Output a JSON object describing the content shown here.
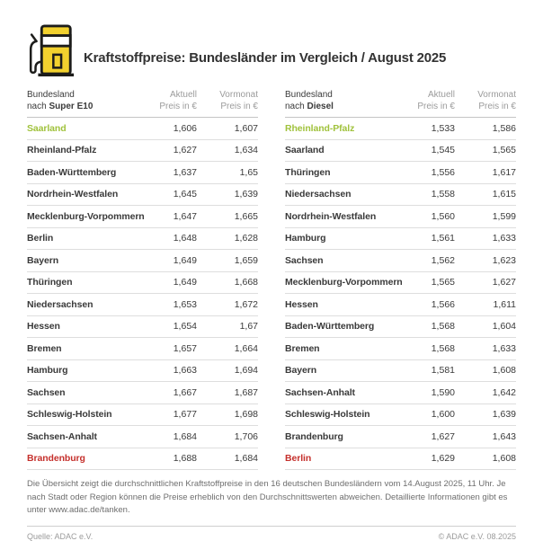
{
  "header": {
    "title": "Kraftstoffpreise: Bundesländer im Vergleich / August 2025",
    "icon": "fuel-pump-icon"
  },
  "colors": {
    "brand_yellow": "#F2D12E",
    "cheapest_green": "#A0C23C",
    "most_expensive_red": "#C5302C",
    "text_dark": "#3A3A3A",
    "text_gray": "#9B9B9B"
  },
  "tables": [
    {
      "name": "super-e10",
      "header": {
        "col1_line1": "Bundesland",
        "col1_prefix": "nach ",
        "col1_fuel": "Super E10",
        "col2_line1": "Aktuell",
        "col2_line2": "Preis in €",
        "col3_line1": "Vormonat",
        "col3_line2": "Preis in €"
      },
      "rows": [
        {
          "state": "Saarland",
          "current": "1,606",
          "previous": "1,607",
          "highlight": "green"
        },
        {
          "state": "Rheinland-Pfalz",
          "current": "1,627",
          "previous": "1,634",
          "highlight": ""
        },
        {
          "state": "Baden-Württemberg",
          "current": "1,637",
          "previous": "1,65",
          "highlight": ""
        },
        {
          "state": "Nordrhein-Westfalen",
          "current": "1,645",
          "previous": "1,639",
          "highlight": ""
        },
        {
          "state": "Mecklenburg-Vorpommern",
          "current": "1,647",
          "previous": "1,665",
          "highlight": ""
        },
        {
          "state": "Berlin",
          "current": "1,648",
          "previous": "1,628",
          "highlight": ""
        },
        {
          "state": "Bayern",
          "current": "1,649",
          "previous": "1,659",
          "highlight": ""
        },
        {
          "state": "Thüringen",
          "current": "1,649",
          "previous": "1,668",
          "highlight": ""
        },
        {
          "state": "Niedersachsen",
          "current": "1,653",
          "previous": "1,672",
          "highlight": ""
        },
        {
          "state": "Hessen",
          "current": "1,654",
          "previous": "1,67",
          "highlight": ""
        },
        {
          "state": "Bremen",
          "current": "1,657",
          "previous": "1,664",
          "highlight": ""
        },
        {
          "state": "Hamburg",
          "current": "1,663",
          "previous": "1,694",
          "highlight": ""
        },
        {
          "state": "Sachsen",
          "current": "1,667",
          "previous": "1,687",
          "highlight": ""
        },
        {
          "state": "Schleswig-Holstein",
          "current": "1,677",
          "previous": "1,698",
          "highlight": ""
        },
        {
          "state": "Sachsen-Anhalt",
          "current": "1,684",
          "previous": "1,706",
          "highlight": ""
        },
        {
          "state": "Brandenburg",
          "current": "1,688",
          "previous": "1,684",
          "highlight": "red"
        }
      ]
    },
    {
      "name": "diesel",
      "header": {
        "col1_line1": "Bundesland",
        "col1_prefix": "nach ",
        "col1_fuel": "Diesel",
        "col2_line1": "Aktuell",
        "col2_line2": "Preis in €",
        "col3_line1": "Vormonat",
        "col3_line2": "Preis in €"
      },
      "rows": [
        {
          "state": "Rheinland-Pfalz",
          "current": "1,533",
          "previous": "1,586",
          "highlight": "green"
        },
        {
          "state": "Saarland",
          "current": "1,545",
          "previous": "1,565",
          "highlight": ""
        },
        {
          "state": "Thüringen",
          "current": "1,556",
          "previous": "1,617",
          "highlight": ""
        },
        {
          "state": "Niedersachsen",
          "current": "1,558",
          "previous": "1,615",
          "highlight": ""
        },
        {
          "state": "Nordrhein-Westfalen",
          "current": "1,560",
          "previous": "1,599",
          "highlight": ""
        },
        {
          "state": "Hamburg",
          "current": "1,561",
          "previous": "1,633",
          "highlight": ""
        },
        {
          "state": "Sachsen",
          "current": "1,562",
          "previous": "1,623",
          "highlight": ""
        },
        {
          "state": "Mecklenburg-Vorpommern",
          "current": "1,565",
          "previous": "1,627",
          "highlight": ""
        },
        {
          "state": "Hessen",
          "current": "1,566",
          "previous": "1,611",
          "highlight": ""
        },
        {
          "state": "Baden-Württemberg",
          "current": "1,568",
          "previous": "1,604",
          "highlight": ""
        },
        {
          "state": "Bremen",
          "current": "1,568",
          "previous": "1,633",
          "highlight": ""
        },
        {
          "state": "Bayern",
          "current": "1,581",
          "previous": "1,608",
          "highlight": ""
        },
        {
          "state": "Sachsen-Anhalt",
          "current": "1,590",
          "previous": "1,642",
          "highlight": ""
        },
        {
          "state": "Schleswig-Holstein",
          "current": "1,600",
          "previous": "1,639",
          "highlight": ""
        },
        {
          "state": "Brandenburg",
          "current": "1,627",
          "previous": "1,643",
          "highlight": ""
        },
        {
          "state": "Berlin",
          "current": "1,629",
          "previous": "1,608",
          "highlight": "red"
        }
      ]
    }
  ],
  "chart_data": [
    {
      "type": "table",
      "title": "Bundesland nach Super E10",
      "columns": [
        "Bundesland",
        "Aktuell Preis in €",
        "Vormonat Preis in €"
      ],
      "rows": [
        [
          "Saarland",
          1.606,
          1.607
        ],
        [
          "Rheinland-Pfalz",
          1.627,
          1.634
        ],
        [
          "Baden-Württemberg",
          1.637,
          1.65
        ],
        [
          "Nordrhein-Westfalen",
          1.645,
          1.639
        ],
        [
          "Mecklenburg-Vorpommern",
          1.647,
          1.665
        ],
        [
          "Berlin",
          1.648,
          1.628
        ],
        [
          "Bayern",
          1.649,
          1.659
        ],
        [
          "Thüringen",
          1.649,
          1.668
        ],
        [
          "Niedersachsen",
          1.653,
          1.672
        ],
        [
          "Hessen",
          1.654,
          1.67
        ],
        [
          "Bremen",
          1.657,
          1.664
        ],
        [
          "Hamburg",
          1.663,
          1.694
        ],
        [
          "Sachsen",
          1.667,
          1.687
        ],
        [
          "Schleswig-Holstein",
          1.677,
          1.698
        ],
        [
          "Sachsen-Anhalt",
          1.684,
          1.706
        ],
        [
          "Brandenburg",
          1.688,
          1.684
        ]
      ],
      "highlights": {
        "cheapest": "Saarland",
        "most_expensive": "Brandenburg"
      }
    },
    {
      "type": "table",
      "title": "Bundesland nach Diesel",
      "columns": [
        "Bundesland",
        "Aktuell Preis in €",
        "Vormonat Preis in €"
      ],
      "rows": [
        [
          "Rheinland-Pfalz",
          1.533,
          1.586
        ],
        [
          "Saarland",
          1.545,
          1.565
        ],
        [
          "Thüringen",
          1.556,
          1.617
        ],
        [
          "Niedersachsen",
          1.558,
          1.615
        ],
        [
          "Nordrhein-Westfalen",
          1.56,
          1.599
        ],
        [
          "Hamburg",
          1.561,
          1.633
        ],
        [
          "Sachsen",
          1.562,
          1.623
        ],
        [
          "Mecklenburg-Vorpommern",
          1.565,
          1.627
        ],
        [
          "Hessen",
          1.566,
          1.611
        ],
        [
          "Baden-Württemberg",
          1.568,
          1.604
        ],
        [
          "Bremen",
          1.568,
          1.633
        ],
        [
          "Bayern",
          1.581,
          1.608
        ],
        [
          "Sachsen-Anhalt",
          1.59,
          1.642
        ],
        [
          "Schleswig-Holstein",
          1.6,
          1.639
        ],
        [
          "Brandenburg",
          1.627,
          1.643
        ],
        [
          "Berlin",
          1.629,
          1.608
        ]
      ],
      "highlights": {
        "cheapest": "Rheinland-Pfalz",
        "most_expensive": "Berlin"
      }
    }
  ],
  "footer": {
    "footnote": "Die Übersicht zeigt die durchschnittlichen Kraftstoffpreise in den 16 deutschen Bundesländern vom 14.August 2025, 11 Uhr. Je nach Stadt oder Region können die Preise erheblich von den Durchschnittswerten abweichen. Detaillierte Informationen gibt es unter www.adac.de/tanken.",
    "source": "Quelle: ADAC e.V.",
    "copyright": "© ADAC e.V. 08.2025"
  }
}
